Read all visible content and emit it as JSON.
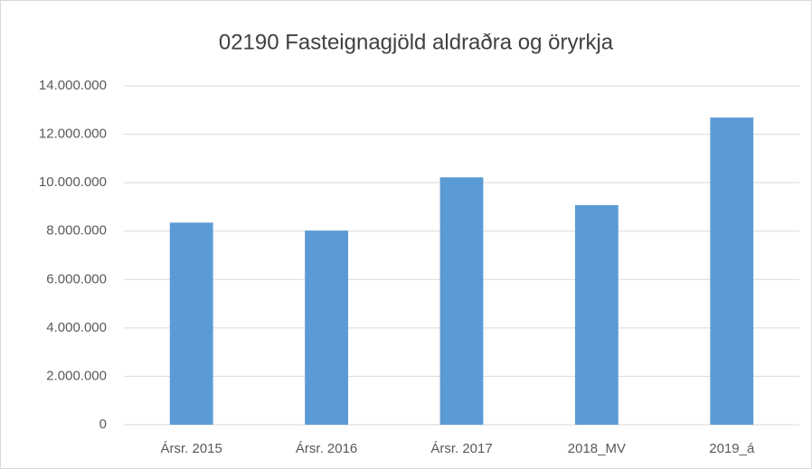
{
  "chart_data": {
    "type": "bar",
    "title": "02190  Fasteignagjöld aldraðra og öryrkja",
    "categories": [
      "Ársr. 2015",
      "Ársr. 2016",
      "Ársr. 2017",
      "2018_MV",
      "2019_á"
    ],
    "values": [
      8350000,
      8020000,
      10220000,
      9070000,
      12690000
    ],
    "color": "#5b9bd5",
    "ylim": [
      0,
      14000000
    ],
    "yticks": [
      0,
      {
        "value": 2000000,
        "label": "2.000.000"
      },
      {
        "value": 4000000,
        "label": "4.000.000"
      },
      {
        "value": 6000000,
        "label": "6.000.000"
      },
      {
        "value": 8000000,
        "label": "8.000.000"
      },
      {
        "value": 10000000,
        "label": "10.000.000"
      },
      {
        "value": 12000000,
        "label": "12.000.000"
      },
      {
        "value": 14000000,
        "label": "14.000.000"
      }
    ],
    "grid": true
  }
}
